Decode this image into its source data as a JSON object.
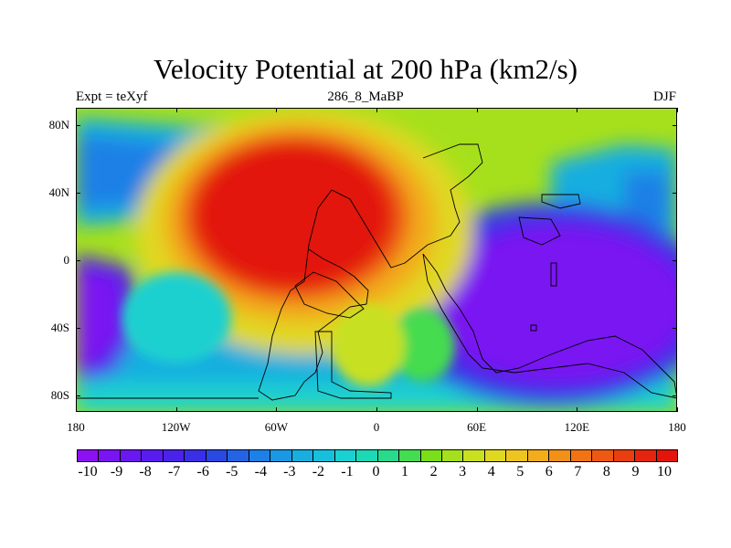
{
  "title": "Velocity Potential at 200 hPa (km2/s)",
  "left_label": "Expt = teXyf",
  "center_label": "286_8_MaBP",
  "right_label": "DJF",
  "map": {
    "lon_range": [
      -180,
      180
    ],
    "lat_range": [
      -90,
      90
    ],
    "xticks": [
      {
        "lon": -180,
        "label": "180"
      },
      {
        "lon": -120,
        "label": "120W"
      },
      {
        "lon": -60,
        "label": "60W"
      },
      {
        "lon": 0,
        "label": "0"
      },
      {
        "lon": 60,
        "label": "60E"
      },
      {
        "lon": 120,
        "label": "120E"
      },
      {
        "lon": 180,
        "label": "180"
      }
    ],
    "yticks": [
      {
        "lat": 80,
        "label": "80N"
      },
      {
        "lat": 40,
        "label": "40N"
      },
      {
        "lat": 0,
        "label": "0"
      },
      {
        "lat": -40,
        "label": "40S"
      },
      {
        "lat": -80,
        "label": "80S"
      }
    ]
  },
  "colorbar": {
    "colors": [
      "#8c10f2",
      "#7a14f2",
      "#6a18f0",
      "#581cee",
      "#4a22ea",
      "#3a2ee6",
      "#2a48e2",
      "#2464e4",
      "#1e80e6",
      "#1a98e4",
      "#18aee0",
      "#16c0dc",
      "#1ad0d0",
      "#1cd8b4",
      "#28da8c",
      "#44dc50",
      "#7ade1a",
      "#a6e01c",
      "#c8e020",
      "#e0d820",
      "#eec420",
      "#f2ac1c",
      "#f29018",
      "#f07414",
      "#ee5812",
      "#ea3e10",
      "#e6240e",
      "#e2140c"
    ],
    "labels": [
      "-10",
      "-9",
      "-8",
      "-7",
      "-6",
      "-5",
      "-4",
      "-3",
      "-2",
      "-1",
      "0",
      "1",
      "2",
      "3",
      "4",
      "5",
      "6",
      "7",
      "8",
      "9",
      "10"
    ],
    "range": [
      -10,
      10
    ]
  }
}
